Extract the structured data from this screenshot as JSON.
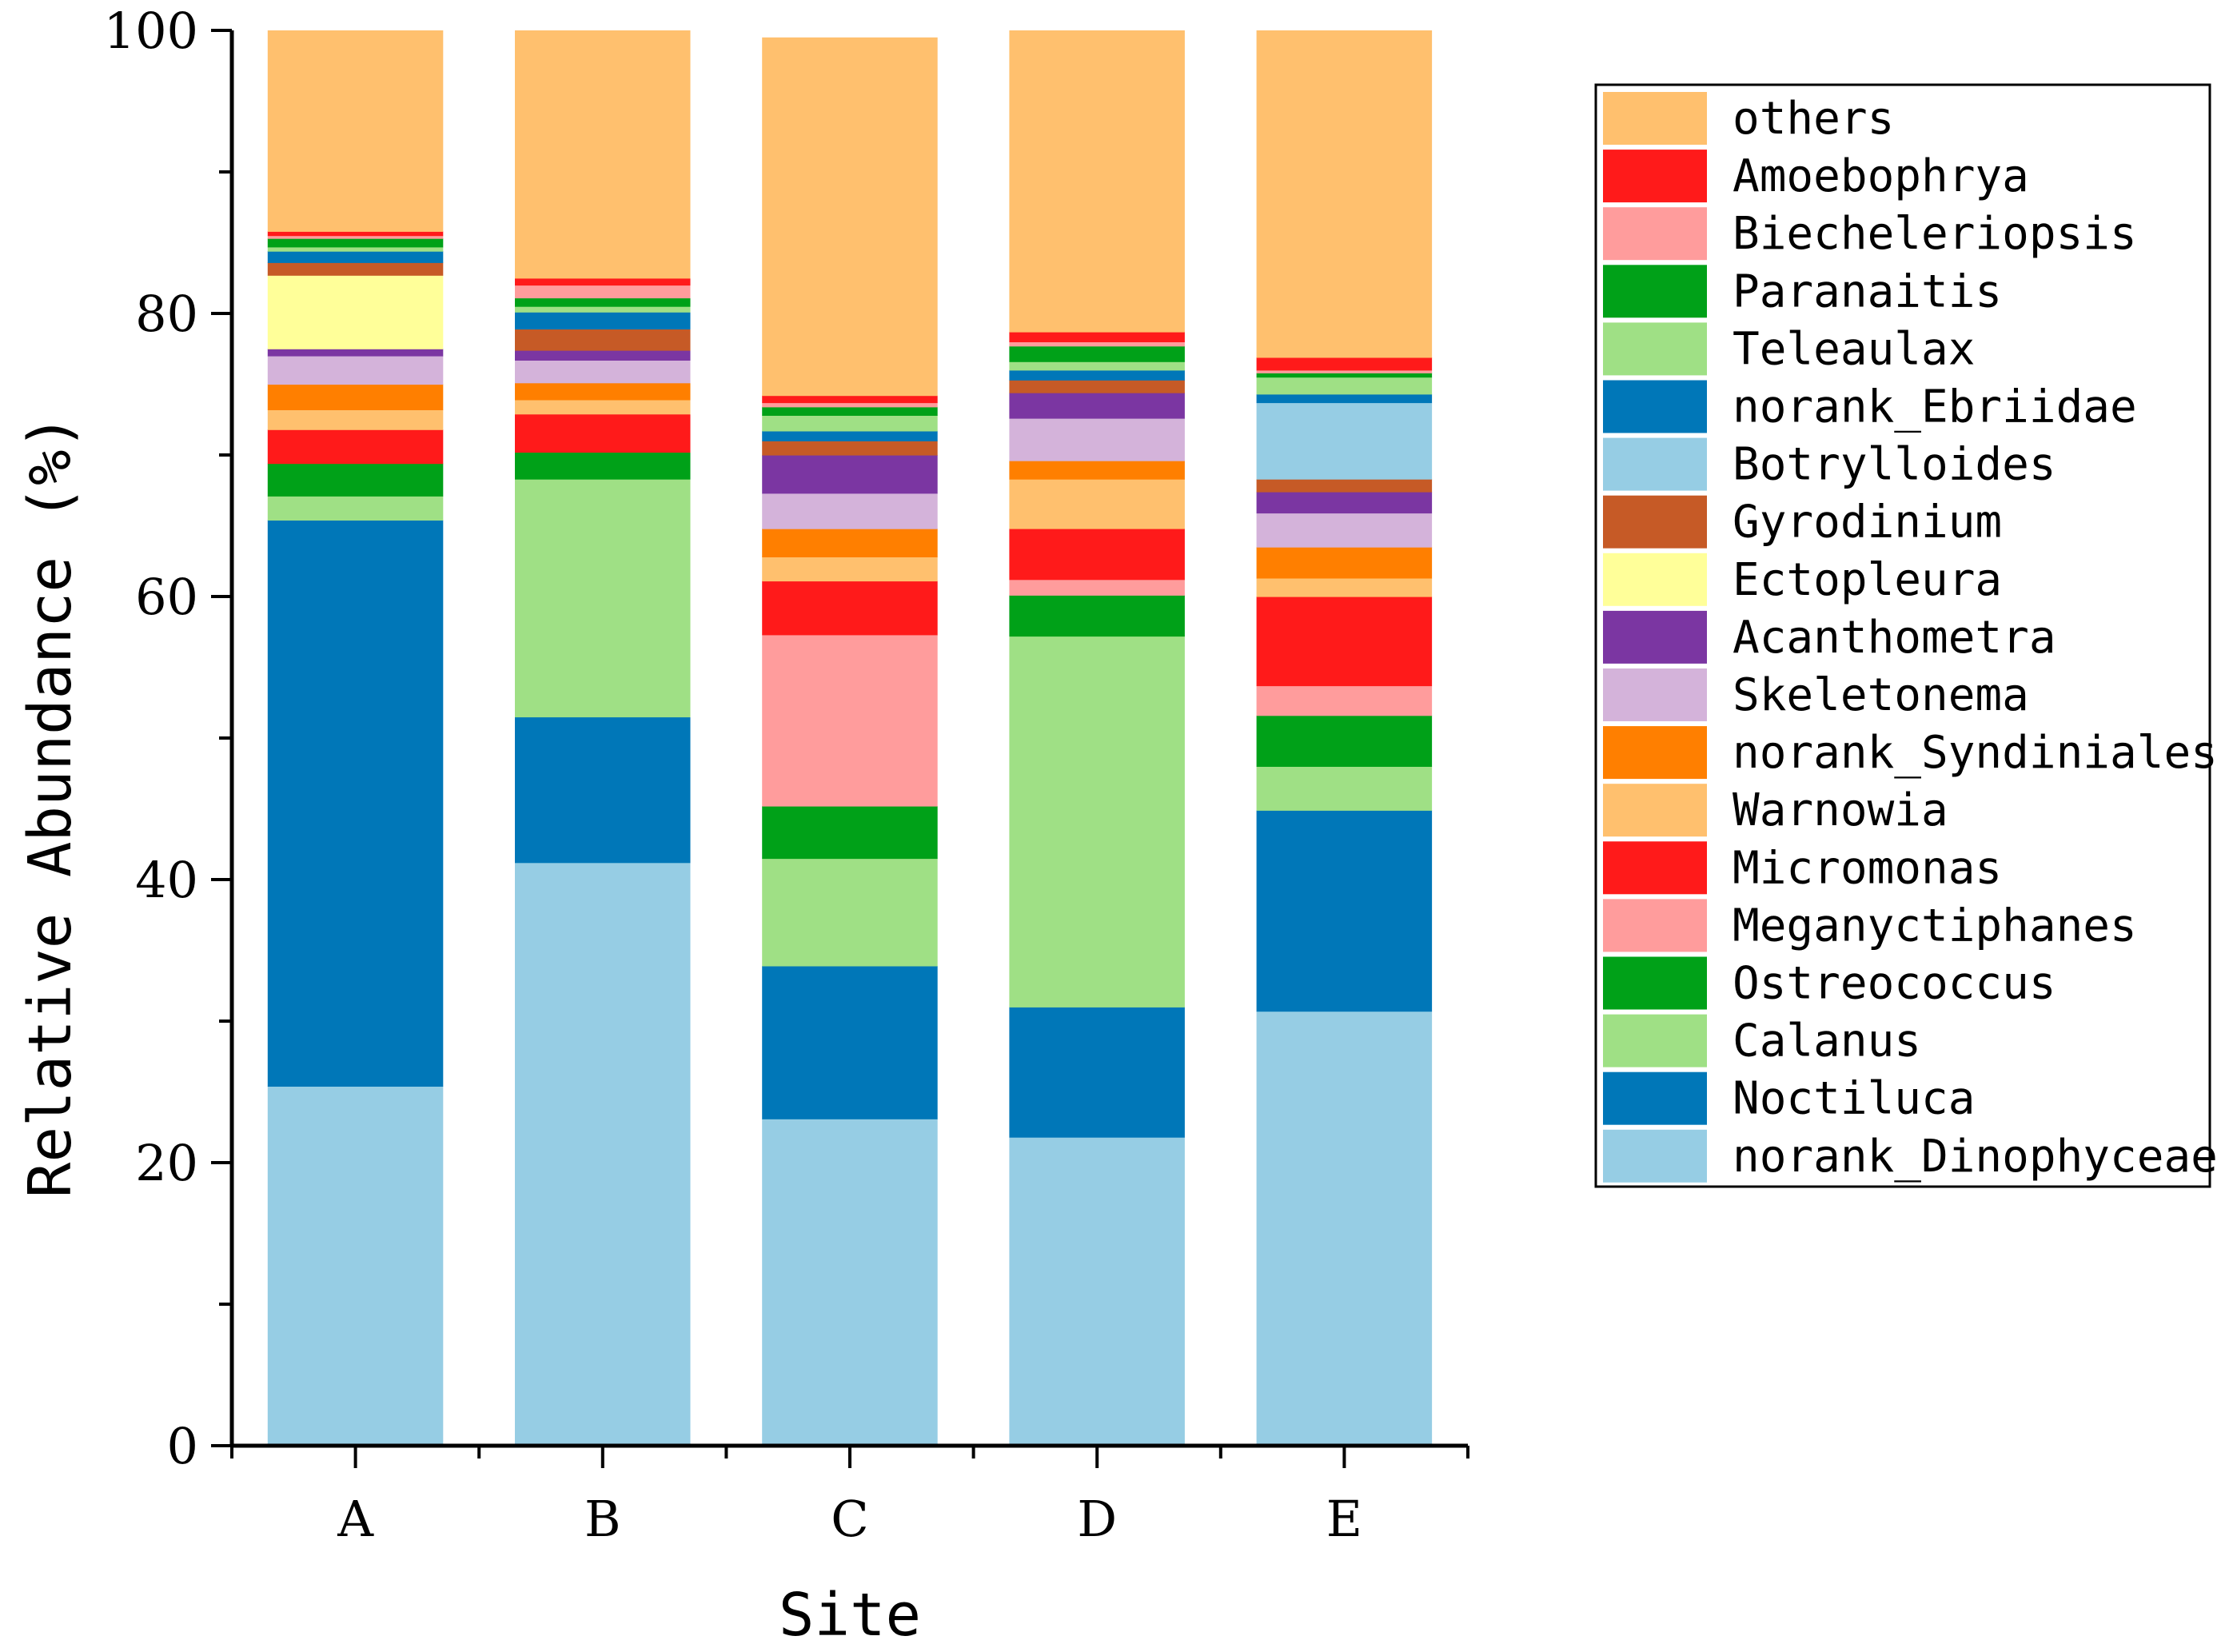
{
  "chart_data": {
    "type": "bar",
    "stacked": true,
    "title": "",
    "xlabel": "Site",
    "ylabel": "Relative Abundance (%)",
    "ylim": [
      0,
      100
    ],
    "yticks": [
      0,
      20,
      40,
      60,
      80,
      100
    ],
    "grid": false,
    "legend_position": "right",
    "categories": [
      "A",
      "B",
      "C",
      "D",
      "E"
    ],
    "series": [
      {
        "name": "norank_Dinophyceae",
        "color": "#96CDE4",
        "values": [
          25.4,
          41.2,
          23.1,
          21.8,
          30.7
        ]
      },
      {
        "name": "Noctiluca",
        "color": "#0077B8",
        "values": [
          40.0,
          10.3,
          10.8,
          9.2,
          14.2
        ]
      },
      {
        "name": "Calanus",
        "color": "#9FE085",
        "values": [
          1.7,
          16.8,
          7.6,
          26.2,
          3.1
        ]
      },
      {
        "name": "Ostreococcus",
        "color": "#00A118",
        "values": [
          2.3,
          1.9,
          3.7,
          2.9,
          3.6
        ]
      },
      {
        "name": "Meganyctiphanes",
        "color": "#FF9C9C",
        "values": [
          0.0,
          0.0,
          12.1,
          1.1,
          2.1
        ]
      },
      {
        "name": "Micromonas",
        "color": "#FF1A1A",
        "values": [
          2.4,
          2.7,
          3.8,
          3.6,
          6.3
        ]
      },
      {
        "name": "Warnowia",
        "color": "#FFC06E",
        "values": [
          1.4,
          1.0,
          1.7,
          3.5,
          1.3
        ]
      },
      {
        "name": "norank_Syndiniales",
        "color": "#FF7F00",
        "values": [
          1.8,
          1.2,
          2.0,
          1.3,
          2.2
        ]
      },
      {
        "name": "Skeletonema",
        "color": "#D4B3DA",
        "values": [
          2.0,
          1.6,
          2.5,
          3.0,
          2.4
        ]
      },
      {
        "name": "Acanthometra",
        "color": "#7B36A2",
        "values": [
          0.5,
          0.7,
          2.7,
          1.8,
          1.5
        ]
      },
      {
        "name": "Ectopleura",
        "color": "#FFFF99",
        "values": [
          5.2,
          0.0,
          0.0,
          0.0,
          0.0
        ]
      },
      {
        "name": "Gyrodinium",
        "color": "#C65A26",
        "values": [
          0.9,
          1.5,
          1.0,
          0.9,
          0.9
        ]
      },
      {
        "name": "Botrylloides",
        "color": "#96CDE4",
        "values": [
          0.0,
          0.0,
          0.0,
          0.0,
          5.4
        ]
      },
      {
        "name": "norank_Ebriidae",
        "color": "#0077B8",
        "values": [
          0.8,
          1.2,
          0.7,
          0.7,
          0.6
        ]
      },
      {
        "name": "Teleaulax",
        "color": "#9FE085",
        "values": [
          0.3,
          0.4,
          1.1,
          0.6,
          1.2
        ]
      },
      {
        "name": "Paranaitis",
        "color": "#00A118",
        "values": [
          0.6,
          0.6,
          0.6,
          1.1,
          0.3
        ]
      },
      {
        "name": "Biecheleriopsis",
        "color": "#FF9C9C",
        "values": [
          0.2,
          0.9,
          0.3,
          0.3,
          0.2
        ]
      },
      {
        "name": "Amoebophrya",
        "color": "#FF1A1A",
        "values": [
          0.3,
          0.5,
          0.5,
          0.7,
          0.9
        ]
      },
      {
        "name": "others",
        "color": "#FFC06E",
        "values": [
          14.2,
          17.5,
          25.3,
          21.3,
          23.1
        ]
      }
    ]
  }
}
